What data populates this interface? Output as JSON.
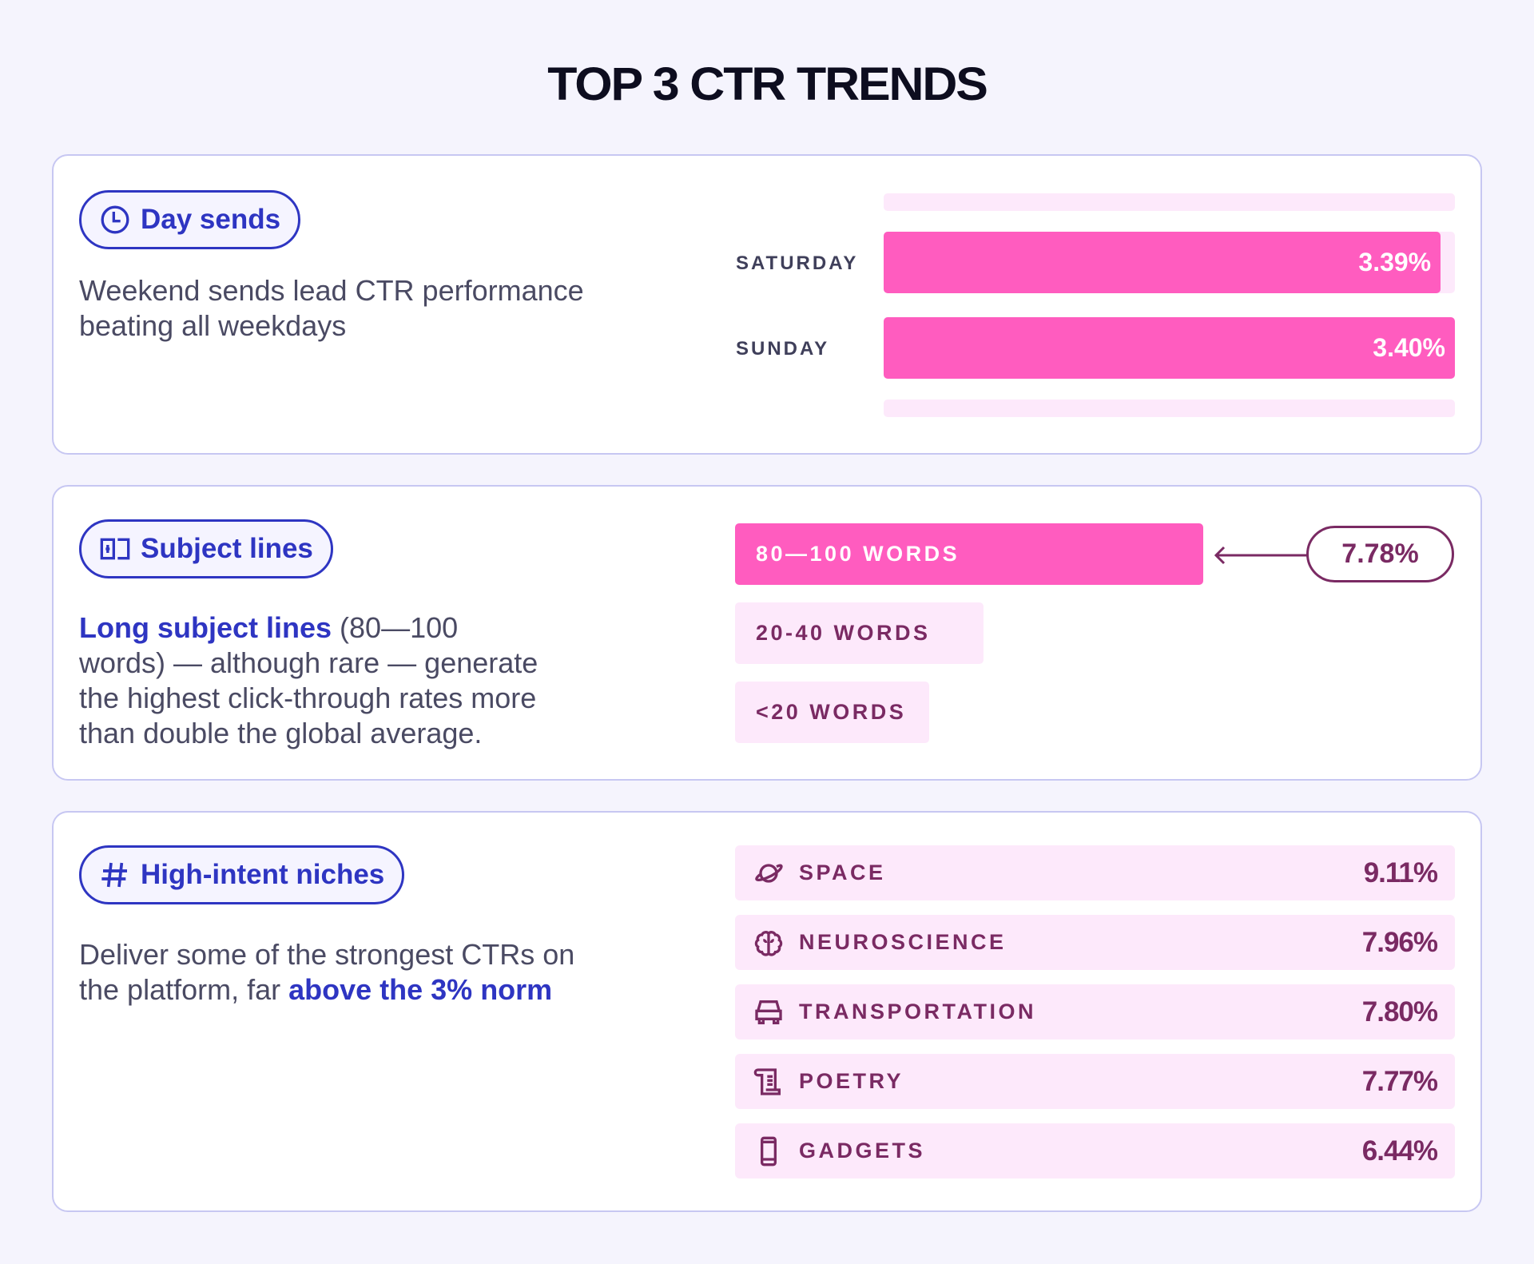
{
  "title": "TOP 3 CTR TRENDS",
  "colors": {
    "accent_pink": "#ff5cbf",
    "light_pink": "#fde9fb",
    "brand_blue": "#2e35c2",
    "plum": "#7a2a63"
  },
  "day_sends": {
    "pill_label": "Day sends",
    "icon": "clock-icon",
    "description": "Weekend sends lead CTR performance beating all weekdays"
  },
  "subject_lines": {
    "pill_label": "Subject lines",
    "icon": "subject-icon",
    "desc_highlight": "Long subject lines",
    "desc_rest": " (80—100 words) — although rare — generate the highest click-through rates more than double the global average.",
    "bars": [
      {
        "label": "80—100 WORDS",
        "value": "7.78%",
        "highlighted": true
      },
      {
        "label": "20-40 WORDS",
        "highlighted": false
      },
      {
        "label": "<20 WORDS",
        "highlighted": false
      }
    ]
  },
  "niches": {
    "pill_label": "High-intent niches",
    "icon": "hash-icon",
    "desc_start": "Deliver some of the strongest CTRs on the platform, far ",
    "desc_highlight": "above the 3% norm",
    "items": [
      {
        "label": "SPACE",
        "value": "9.11%",
        "icon": "planet-icon"
      },
      {
        "label": "NEUROSCIENCE",
        "value": "7.96%",
        "icon": "brain-icon"
      },
      {
        "label": "TRANSPORTATION",
        "value": "7.80%",
        "icon": "car-icon"
      },
      {
        "label": "POETRY",
        "value": "7.77%",
        "icon": "scroll-icon"
      },
      {
        "label": "GADGETS",
        "value": "6.44%",
        "icon": "phone-icon"
      }
    ]
  },
  "chart_data": {
    "type": "bar",
    "orientation": "horizontal",
    "categories": [
      "SATURDAY",
      "SUNDAY"
    ],
    "values": [
      3.39,
      3.4
    ],
    "value_labels": [
      "3.39%",
      "3.40%"
    ],
    "xlim": [
      3.0,
      3.4
    ],
    "grid": false
  }
}
